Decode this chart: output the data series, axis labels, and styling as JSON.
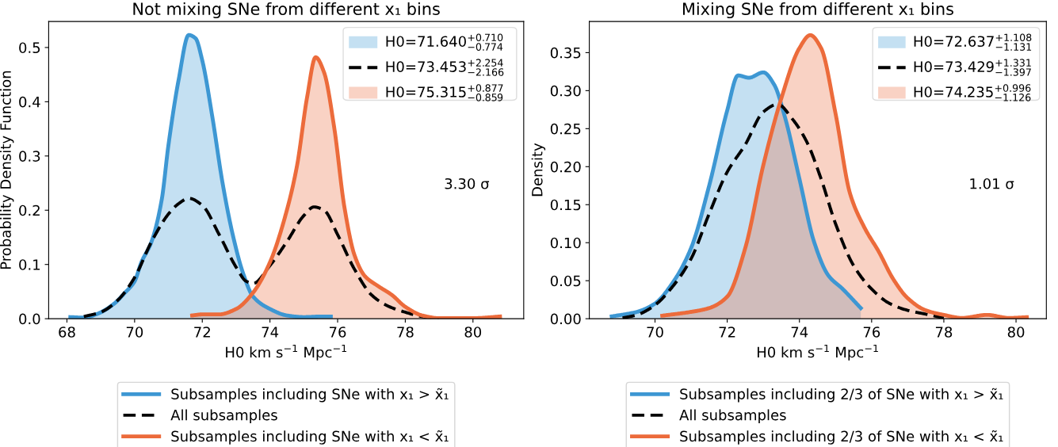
{
  "chart_data": [
    {
      "type": "area",
      "title": "Not mixing SNe from different x₁ bins",
      "xlabel": "H0 km s$^{−1}$ Mpc$^{−1}$",
      "ylabel": "Probability Density Function",
      "legend": "bottom",
      "annotations": [
        "H0=71.640$^{+0.710}$$_{−0.774}$",
        "H0=73.453$^{+2.254}$$_{−2.166}$",
        "H0=75.315$^{+0.877}$$_{−0.859}$",
        "3.30 σ"
      ],
      "xlim": [
        67.46,
        81.5
      ],
      "ylim": [
        0,
        0.548
      ],
      "xticks": [
        68,
        70,
        72,
        74,
        76,
        78,
        80
      ],
      "yticks": [
        {
          "value": 0,
          "label": "0.0"
        },
        0.1,
        0.2,
        0.3,
        0.4,
        0.5
      ],
      "series": [
        {
          "name": "Subsamples including SNe with x₁ > x̃₁",
          "color": "#3d97d3",
          "x": [
            68.1,
            68.5,
            68.9,
            69.4,
            69.7,
            70.0,
            70.2,
            70.5,
            70.8,
            71.0,
            71.3,
            71.6,
            71.8,
            72.0,
            72.3,
            72.6,
            72.9,
            73.2,
            73.5,
            74.0,
            74.5,
            75.0,
            75.5,
            75.8
          ],
          "values": [
            0.003,
            0.002,
            0.009,
            0.028,
            0.047,
            0.069,
            0.104,
            0.142,
            0.219,
            0.32,
            0.44,
            0.523,
            0.517,
            0.476,
            0.371,
            0.25,
            0.155,
            0.085,
            0.041,
            0.018,
            0.006,
            0.003,
            0.004,
            0.004
          ]
        },
        {
          "type": "line",
          "line_style": "dashed",
          "name": "All subsamples",
          "color": "#000000",
          "x": [
            68.5,
            69.0,
            69.5,
            70.0,
            70.5,
            71.0,
            71.3,
            71.6,
            72.0,
            72.5,
            73.0,
            73.3,
            73.5,
            74.0,
            74.5,
            75.0,
            75.3,
            75.6,
            76.0,
            76.5,
            77.0,
            77.5,
            78.0,
            78.5,
            79.0
          ],
          "values": [
            0.004,
            0.012,
            0.034,
            0.076,
            0.142,
            0.193,
            0.212,
            0.222,
            0.209,
            0.155,
            0.095,
            0.069,
            0.065,
            0.098,
            0.142,
            0.19,
            0.206,
            0.2,
            0.155,
            0.091,
            0.044,
            0.023,
            0.012,
            0.004,
            0.001
          ]
        },
        {
          "name": "Subsamples including SNe with x₁ < x̃₁",
          "color": "#ec6b3b",
          "x": [
            71.7,
            72.0,
            72.5,
            73.0,
            73.5,
            74.0,
            74.5,
            74.8,
            75.1,
            75.35,
            75.6,
            75.9,
            76.2,
            76.5,
            76.8,
            77.2,
            77.6,
            78.0,
            78.5,
            79.0,
            80.0,
            80.8
          ],
          "values": [
            0.006,
            0.008,
            0.008,
            0.018,
            0.048,
            0.104,
            0.2,
            0.282,
            0.409,
            0.482,
            0.454,
            0.352,
            0.206,
            0.117,
            0.079,
            0.06,
            0.044,
            0.022,
            0.006,
            0.001,
            0.001,
            0.004
          ]
        }
      ]
    },
    {
      "type": "area",
      "title": "Mixing SNe from different x₁ bins",
      "xlabel": "H0 km s$^{−1}$ Mpc$^{−1}$",
      "ylabel": "Density",
      "legend": "bottom",
      "annotations": [
        "H0=72.637$^{+1.108}$$_{−1.131}$",
        "H0=73.429$^{+1.331}$$_{−1.397}$",
        "H0=74.235$^{+0.996}$$_{−1.126}$",
        "1.01 σ"
      ],
      "xlim": [
        68.18,
        80.84
      ],
      "ylim": [
        0,
        0.391
      ],
      "xticks": [
        70,
        72,
        74,
        76,
        78,
        80
      ],
      "yticks": [
        {
          "value": 0,
          "label": "0.00"
        },
        0.05,
        {
          "value": 0.1,
          "label": "0.10"
        },
        0.15,
        {
          "value": 0.2,
          "label": "0.20"
        },
        0.25,
        {
          "value": 0.3,
          "label": "0.30"
        },
        0.35
      ],
      "series": [
        {
          "name": "Subsamples including 2/3 of SNe with x₁ > x̃₁",
          "color": "#3d97d3",
          "x": [
            68.8,
            69.5,
            70.0,
            70.5,
            71.0,
            71.5,
            72.0,
            72.3,
            72.6,
            73.0,
            73.3,
            73.6,
            74.0,
            74.4,
            74.8,
            75.2,
            75.7
          ],
          "values": [
            0.003,
            0.009,
            0.02,
            0.048,
            0.093,
            0.175,
            0.274,
            0.32,
            0.317,
            0.324,
            0.308,
            0.265,
            0.184,
            0.102,
            0.057,
            0.039,
            0.014
          ]
        },
        {
          "type": "line",
          "line_style": "dashed",
          "name": "All subsamples",
          "color": "#000000",
          "x": [
            69.1,
            69.5,
            70.0,
            70.5,
            71.0,
            71.5,
            72.0,
            72.5,
            73.0,
            73.4,
            73.8,
            74.2,
            74.6,
            75.0,
            75.5,
            76.0,
            76.5,
            77.0,
            77.5,
            78.0
          ],
          "values": [
            0.001,
            0.005,
            0.018,
            0.043,
            0.079,
            0.138,
            0.193,
            0.229,
            0.272,
            0.282,
            0.263,
            0.233,
            0.184,
            0.125,
            0.07,
            0.039,
            0.02,
            0.011,
            0.006,
            0.001
          ]
        },
        {
          "name": "Subsamples including 2/3 of SNe with x₁ < x̃₁",
          "color": "#ec6b3b",
          "x": [
            70.2,
            71.0,
            71.5,
            72.0,
            72.5,
            73.0,
            73.5,
            74.0,
            74.3,
            74.6,
            75.0,
            75.4,
            75.8,
            76.2,
            76.6,
            77.0,
            77.5,
            78.0,
            78.5,
            79.2,
            79.8,
            80.3
          ],
          "values": [
            0.004,
            0.009,
            0.014,
            0.029,
            0.093,
            0.202,
            0.29,
            0.356,
            0.373,
            0.356,
            0.27,
            0.165,
            0.12,
            0.088,
            0.052,
            0.027,
            0.011,
            0.005,
            0.001,
            0.005,
            0.001,
            0.002
          ]
        }
      ]
    }
  ]
}
